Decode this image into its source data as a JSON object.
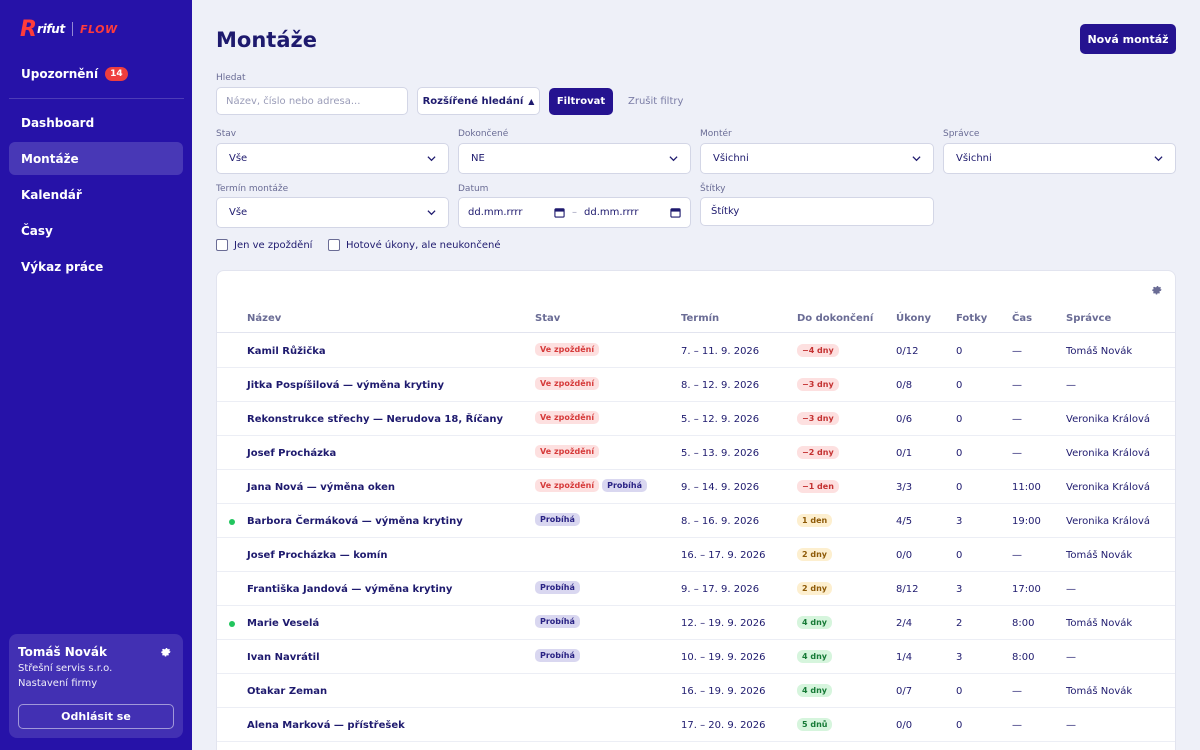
{
  "brand": {
    "mark": "R",
    "name": "rifut",
    "product": "FLOW"
  },
  "sidebar": {
    "notifications": {
      "label": "Upozornění",
      "count": "14"
    },
    "items": [
      {
        "label": "Dashboard",
        "active": false
      },
      {
        "label": "Montáže",
        "active": true
      },
      {
        "label": "Kalendář",
        "active": false
      },
      {
        "label": "Časy",
        "active": false
      },
      {
        "label": "Výkaz práce",
        "active": false
      }
    ],
    "user": {
      "name": "Tomáš Novák",
      "company": "Střešní servis s.r.o.",
      "settings": "Nastavení firmy",
      "logout": "Odhlásit se"
    }
  },
  "page": {
    "title": "Montáže",
    "new_button": "Nová montáž"
  },
  "filters": {
    "search_label": "Hledat",
    "search_placeholder": "Název, číslo nebo adresa...",
    "advanced": "Rozšířené hledání",
    "filter_button": "Filtrovat",
    "clear": "Zrušit filtry",
    "stav": {
      "label": "Stav",
      "value": "Vše"
    },
    "dokoncene": {
      "label": "Dokončené",
      "value": "NE"
    },
    "monter": {
      "label": "Montér",
      "value": "Všichni"
    },
    "spravce": {
      "label": "Správce",
      "value": "Všichni"
    },
    "termin": {
      "label": "Termín montáže",
      "value": "Vše"
    },
    "datum": {
      "label": "Datum",
      "from": "dd.mm.rrrr",
      "to": "dd.mm.rrrr",
      "dash": "–"
    },
    "stitky": {
      "label": "Štítky",
      "value": "Štítky"
    },
    "only_late": "Jen ve zpoždění",
    "done_tasks": "Hotové úkony, ale neukončené"
  },
  "table": {
    "headers": {
      "name": "Název",
      "stav": "Stav",
      "termin": "Termín",
      "do_dokonceni": "Do dokončení",
      "ukony": "Úkony",
      "fotky": "Fotky",
      "cas": "Čas",
      "spravce": "Správce"
    },
    "status_colors": {
      "late": "#d63b3b",
      "running": "#2a2384",
      "dot": "#22c55e"
    },
    "rows": [
      {
        "name": "Kamil Růžička",
        "dot": false,
        "badges": [
          {
            "text": "Ve zpoždění",
            "kind": "late"
          }
        ],
        "termin": "7. – 11. 9. 2026",
        "remaining": {
          "text": "−4 dny",
          "tone": "red"
        },
        "ukony": "0/12",
        "fotky": "0",
        "cas": "—",
        "spravce": "Tomáš Novák"
      },
      {
        "name": "Jitka Pospíšilová — výměna krytiny",
        "dot": false,
        "badges": [
          {
            "text": "Ve zpoždění",
            "kind": "late"
          }
        ],
        "termin": "8. – 12. 9. 2026",
        "remaining": {
          "text": "−3 dny",
          "tone": "red"
        },
        "ukony": "0/8",
        "fotky": "0",
        "cas": "—",
        "spravce": "—"
      },
      {
        "name": "Rekonstrukce střechy — Nerudova 18, Říčany",
        "dot": false,
        "badges": [
          {
            "text": "Ve zpoždění",
            "kind": "late"
          }
        ],
        "termin": "5. – 12. 9. 2026",
        "remaining": {
          "text": "−3 dny",
          "tone": "red"
        },
        "ukony": "0/6",
        "fotky": "0",
        "cas": "—",
        "spravce": "Veronika Králová"
      },
      {
        "name": "Josef Procházka",
        "dot": false,
        "badges": [
          {
            "text": "Ve zpoždění",
            "kind": "late"
          }
        ],
        "termin": "5. – 13. 9. 2026",
        "remaining": {
          "text": "−2 dny",
          "tone": "red"
        },
        "ukony": "0/1",
        "fotky": "0",
        "cas": "—",
        "spravce": "Veronika Králová"
      },
      {
        "name": "Jana Nová — výměna oken",
        "dot": false,
        "badges": [
          {
            "text": "Ve zpoždění",
            "kind": "late"
          },
          {
            "text": "Probíhá",
            "kind": "running"
          }
        ],
        "termin": "9. – 14. 9. 2026",
        "remaining": {
          "text": "−1 den",
          "tone": "red"
        },
        "ukony": "3/3",
        "fotky": "0",
        "cas": "11:00",
        "spravce": "Veronika Králová"
      },
      {
        "name": "Barbora Čermáková — výměna krytiny",
        "dot": true,
        "badges": [
          {
            "text": "Probíhá",
            "kind": "running"
          }
        ],
        "termin": "8. – 16. 9. 2026",
        "remaining": {
          "text": "1 den",
          "tone": "yellow"
        },
        "ukony": "4/5",
        "fotky": "3",
        "cas": "19:00",
        "spravce": "Veronika Králová"
      },
      {
        "name": "Josef Procházka — komín",
        "dot": false,
        "badges": [],
        "termin": "16. – 17. 9. 2026",
        "remaining": {
          "text": "2 dny",
          "tone": "yellow"
        },
        "ukony": "0/0",
        "fotky": "0",
        "cas": "—",
        "spravce": "Tomáš Novák"
      },
      {
        "name": "Františka Jandová — výměna krytiny",
        "dot": false,
        "badges": [
          {
            "text": "Probíhá",
            "kind": "running"
          }
        ],
        "termin": "9. – 17. 9. 2026",
        "remaining": {
          "text": "2 dny",
          "tone": "yellow"
        },
        "ukony": "8/12",
        "fotky": "3",
        "cas": "17:00",
        "spravce": "—"
      },
      {
        "name": "Marie Veselá",
        "dot": true,
        "badges": [
          {
            "text": "Probíhá",
            "kind": "running"
          }
        ],
        "termin": "12. – 19. 9. 2026",
        "remaining": {
          "text": "4 dny",
          "tone": "green"
        },
        "ukony": "2/4",
        "fotky": "2",
        "cas": "8:00",
        "spravce": "Tomáš Novák"
      },
      {
        "name": "Ivan Navrátil",
        "dot": false,
        "badges": [
          {
            "text": "Probíhá",
            "kind": "running"
          }
        ],
        "termin": "10. – 19. 9. 2026",
        "remaining": {
          "text": "4 dny",
          "tone": "green"
        },
        "ukony": "1/4",
        "fotky": "3",
        "cas": "8:00",
        "spravce": "—"
      },
      {
        "name": "Otakar Zeman",
        "dot": false,
        "badges": [],
        "termin": "16. – 19. 9. 2026",
        "remaining": {
          "text": "4 dny",
          "tone": "green"
        },
        "ukony": "0/7",
        "fotky": "0",
        "cas": "—",
        "spravce": "Tomáš Novák"
      },
      {
        "name": "Alena Marková — přístřešek",
        "dot": false,
        "badges": [],
        "termin": "17. – 20. 9. 2026",
        "remaining": {
          "text": "5 dnů",
          "tone": "green"
        },
        "ukony": "0/0",
        "fotky": "0",
        "cas": "—",
        "spravce": "—"
      }
    ]
  }
}
